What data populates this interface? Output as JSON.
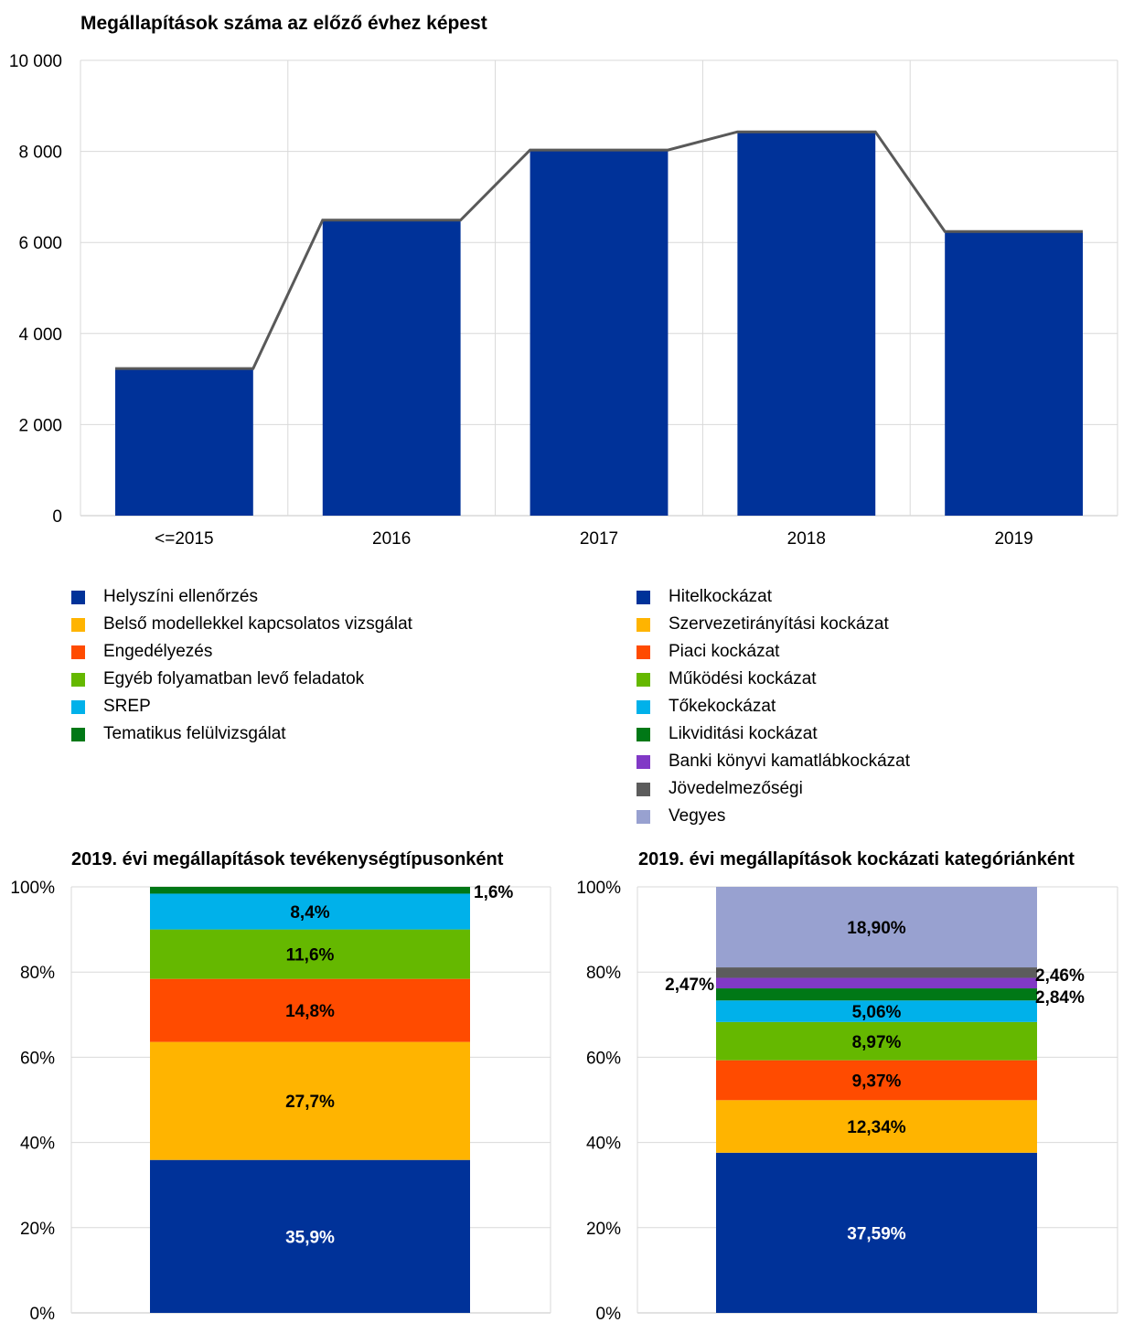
{
  "chart_data": [
    {
      "type": "bar",
      "title": "Megállapítások száma az előző évhez képest",
      "categories": [
        "<=2015",
        "2016",
        "2017",
        "2018",
        "2019"
      ],
      "values": [
        3230,
        6490,
        8030,
        8430,
        6240
      ],
      "ylim": [
        0,
        10000
      ],
      "yticks": [
        0,
        2000,
        4000,
        6000,
        8000,
        10000
      ],
      "ytick_labels": [
        "0",
        "2 000",
        "4 000",
        "6 000",
        "8 000",
        "10 000"
      ],
      "grid": true,
      "overlay": "line connecting bar tops",
      "colors": {
        "bar": "#003299",
        "line": "#595959",
        "grid": "#d9d9d9"
      }
    },
    {
      "type": "bar",
      "stacked": true,
      "title": "2019. évi megállapítások tevékenységtípusonként",
      "ylim": [
        0,
        100
      ],
      "yticks": [
        0,
        20,
        40,
        60,
        80,
        100
      ],
      "ytick_labels": [
        "0%",
        "20%",
        "40%",
        "60%",
        "80%",
        "100%"
      ],
      "series": [
        {
          "name": "Helyszíni ellenőrzés",
          "value": 35.9,
          "label": "35,9%",
          "color": "#003299"
        },
        {
          "name": "Belső modellekkel kapcsolatos vizsgálat",
          "value": 27.7,
          "label": "27,7%",
          "color": "#ffb400"
        },
        {
          "name": "Engedélyezés",
          "value": 14.8,
          "label": "14,8%",
          "color": "#ff4b00"
        },
        {
          "name": "Egyéb folyamatban levő feladatok",
          "value": 11.6,
          "label": "11,6%",
          "color": "#65b800"
        },
        {
          "name": "SREP",
          "value": 8.4,
          "label": "8,4%",
          "color": "#00b1ea"
        },
        {
          "name": "Tematikus felülvizsgálat",
          "value": 1.6,
          "label": "1,6%",
          "color": "#007816"
        }
      ]
    },
    {
      "type": "bar",
      "stacked": true,
      "title": "2019. évi megállapítások kockázati kategóriánként",
      "ylim": [
        0,
        100
      ],
      "yticks": [
        0,
        20,
        40,
        60,
        80,
        100
      ],
      "ytick_labels": [
        "0%",
        "20%",
        "40%",
        "60%",
        "80%",
        "100%"
      ],
      "series": [
        {
          "name": "Hitelkockázat",
          "value": 37.59,
          "label": "37,59%",
          "color": "#003299"
        },
        {
          "name": "Szervezetirányítási kockázat",
          "value": 12.34,
          "label": "12,34%",
          "color": "#ffb400"
        },
        {
          "name": "Piaci kockázat",
          "value": 9.37,
          "label": "9,37%",
          "color": "#ff4b00"
        },
        {
          "name": "Működési kockázat",
          "value": 8.97,
          "label": "8,97%",
          "color": "#65b800"
        },
        {
          "name": "Tőkekockázat",
          "value": 5.06,
          "label": "5,06%",
          "color": "#00b1ea"
        },
        {
          "name": "Likviditási kockázat",
          "value": 2.84,
          "label": "2,84%",
          "color": "#007816"
        },
        {
          "name": "Banki könyvi kamatlábkockázat",
          "value": 2.47,
          "label": "2,47%",
          "color": "#8139c6"
        },
        {
          "name": "Jövedelmezőségi",
          "value": 2.46,
          "label": "2,46%",
          "color": "#5c5c5c"
        },
        {
          "name": "Vegyes",
          "value": 18.9,
          "label": "18,90%",
          "color": "#98a1d0"
        }
      ]
    }
  ]
}
